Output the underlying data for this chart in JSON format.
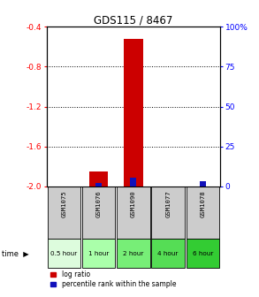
{
  "title": "GDS115 / 8467",
  "samples": [
    "GSM1075",
    "GSM1076",
    "GSM1090",
    "GSM1077",
    "GSM1078"
  ],
  "time_labels": [
    "0.5 hour",
    "1 hour",
    "2 hour",
    "4 hour",
    "6 hour"
  ],
  "log_ratios": [
    0.0,
    -1.85,
    -0.52,
    0.0,
    0.0
  ],
  "percentile_ranks": [
    null,
    2.0,
    5.5,
    null,
    3.5
  ],
  "ylim": [
    -2.0,
    -0.4
  ],
  "yticks_left": [
    -2.0,
    -1.6,
    -1.2,
    -0.8,
    -0.4
  ],
  "yticks_right": [
    0,
    25,
    50,
    75,
    100
  ],
  "bar_color_red": "#cc0000",
  "bar_color_blue": "#1111bb",
  "sample_box_color": "#cccccc",
  "time_box_colors": [
    "#ccffcc",
    "#99ee99",
    "#77dd77",
    "#55cc55",
    "#33bb33"
  ],
  "legend_red_label": "log ratio",
  "legend_blue_label": "percentile rank within the sample",
  "bar_width": 0.55,
  "blue_bar_width": 0.18
}
